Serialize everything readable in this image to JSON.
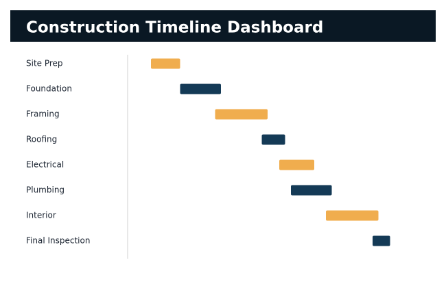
{
  "chart_data": {
    "type": "gantt",
    "title": "Construction Timeline Dashboard",
    "categories": [
      "Site Prep",
      "Foundation",
      "Framing",
      "Roofing",
      "Electrical",
      "Plumbing",
      "Interior",
      "Final Inspection"
    ],
    "start": [
      0,
      5,
      11,
      19,
      22,
      24,
      30,
      38
    ],
    "end": [
      5,
      12,
      20,
      23,
      28,
      31,
      39,
      41
    ],
    "colors": [
      "#f0ad4e",
      "#143a56",
      "#f0ad4e",
      "#143a56",
      "#f0ad4e",
      "#143a56",
      "#f0ad4e",
      "#143a56"
    ],
    "xlim": [
      0,
      41
    ]
  }
}
